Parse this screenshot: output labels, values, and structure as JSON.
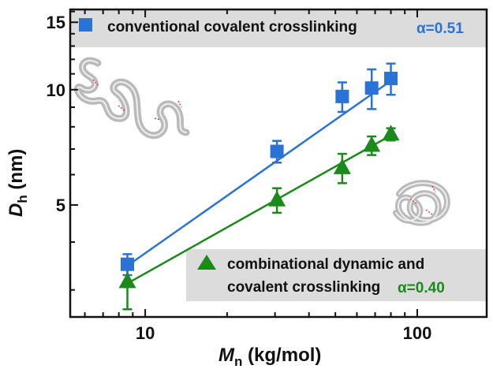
{
  "chart_data": {
    "type": "scatter",
    "xscale": "log",
    "yscale": "log",
    "xlim": [
      5.3,
      180
    ],
    "ylim": [
      2.55,
      16.2
    ],
    "xticks": [
      10,
      100
    ],
    "xtick_labels": [
      "10",
      "100"
    ],
    "yticks": [
      5,
      10,
      15
    ],
    "ytick_labels": [
      "5",
      "10",
      "15"
    ],
    "xlabel": "M",
    "xlabel_sub": "n",
    "xlabel_unit": " (kg/mol)",
    "ylabel": "D",
    "ylabel_sub": "h",
    "ylabel_unit": " (nm)",
    "grid": false,
    "legend_placement": "top and bottom-right boxes",
    "series": [
      {
        "name": "conventional covalent crosslinking",
        "alpha_label": "α=0.51",
        "color": "#2a73d6",
        "marker": "square",
        "x": [
          8.6,
          30.5,
          53,
          68,
          80
        ],
        "y": [
          3.5,
          6.9,
          9.6,
          10.1,
          10.7
        ],
        "err_plus": [
          0.22,
          0.45,
          0.85,
          1.2,
          1.0
        ],
        "err_minus": [
          0.22,
          0.45,
          0.85,
          1.2,
          1.0
        ],
        "fit": [
          [
            8.6,
            3.47
          ],
          [
            80,
            10.55
          ]
        ]
      },
      {
        "name": "combinational dynamic and covalent crosslinking",
        "alpha_label": "α=0.40",
        "color": "#1b8a1b",
        "marker": "triangle",
        "x": [
          8.6,
          30.5,
          53,
          68,
          80
        ],
        "y": [
          3.15,
          5.15,
          6.25,
          7.15,
          7.65
        ],
        "err_plus": [
          0.3,
          0.38,
          0.55,
          0.4,
          0.28
        ],
        "err_minus": [
          0.48,
          0.38,
          0.55,
          0.4,
          0.28
        ],
        "fit": [
          [
            8.6,
            3.12
          ],
          [
            80,
            7.6
          ]
        ]
      }
    ]
  },
  "colors": {
    "legend_box": "#dcdcdc",
    "axis": "#111111",
    "coil": "#9a9a9a",
    "crosslink": "#e23a3a"
  },
  "icons": [
    "polymer-coil-open-icon",
    "polymer-coil-compact-icon"
  ]
}
